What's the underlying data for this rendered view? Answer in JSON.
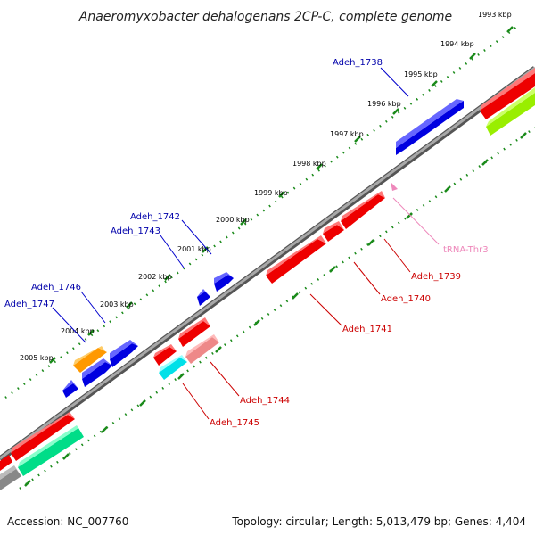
{
  "title": "Anaeromyxobacter dehalogenans 2CP-C, complete genome",
  "footer": {
    "accession": "Accession: NC_007760",
    "topology": "Topology: circular; Length: 5,013,479 bp; Genes: 4,404"
  },
  "tick_labels": [
    "1993 kbp",
    "1994 kbp",
    "1995 kbp",
    "1996 kbp",
    "1997 kbp",
    "1998 kbp",
    "1999 kbp",
    "2000 kbp",
    "2001 kbp",
    "2002 kbp",
    "2003 kbp",
    "2004 kbp",
    "2005 kbp"
  ],
  "genes": [
    {
      "id": "g1738",
      "label": "Adeh_1738",
      "color": "#0000e0",
      "strand": "plus",
      "label_color": "#0000aa"
    },
    {
      "id": "g1739",
      "label": "Adeh_1739",
      "color": "#ee0000",
      "strand": "minus",
      "label_color": "#cc0000"
    },
    {
      "id": "g1740",
      "label": "Adeh_1740",
      "color": "#ee0000",
      "strand": "minus",
      "label_color": "#cc0000"
    },
    {
      "id": "g1741",
      "label": "Adeh_1741",
      "color": "#ee0000",
      "strand": "minus",
      "label_color": "#cc0000"
    },
    {
      "id": "g1742",
      "label": "Adeh_1742",
      "color": "#0000e0",
      "strand": "plus",
      "label_color": "#0000aa"
    },
    {
      "id": "g1743",
      "label": "Adeh_1743",
      "color": "#0000e0",
      "strand": "plus",
      "label_color": "#0000aa"
    },
    {
      "id": "g1744",
      "label": "Adeh_1744",
      "color": "#ee8888",
      "strand": "minus",
      "label_color": "#cc0000"
    },
    {
      "id": "g1745",
      "label": "Adeh_1745",
      "color": "#00e0e8",
      "strand": "minus",
      "label_color": "#cc0000"
    },
    {
      "id": "g1746",
      "label": "Adeh_1746",
      "color": "#0000e0",
      "strand": "plus",
      "label_color": "#0000aa"
    },
    {
      "id": "g1747",
      "label": "Adeh_1747",
      "color": "#0000e0",
      "strand": "plus",
      "label_color": "#0000aa"
    },
    {
      "id": "trna",
      "label": "tRNA-Thr3",
      "color": "#ee88bb",
      "strand": "minus",
      "label_color": "#ee88bb"
    }
  ],
  "unlabeled_colors": {
    "orange": "#ff9900",
    "lime": "#99ee00",
    "green": "#00dd88",
    "gray": "#888888",
    "red": "#ee0000"
  }
}
